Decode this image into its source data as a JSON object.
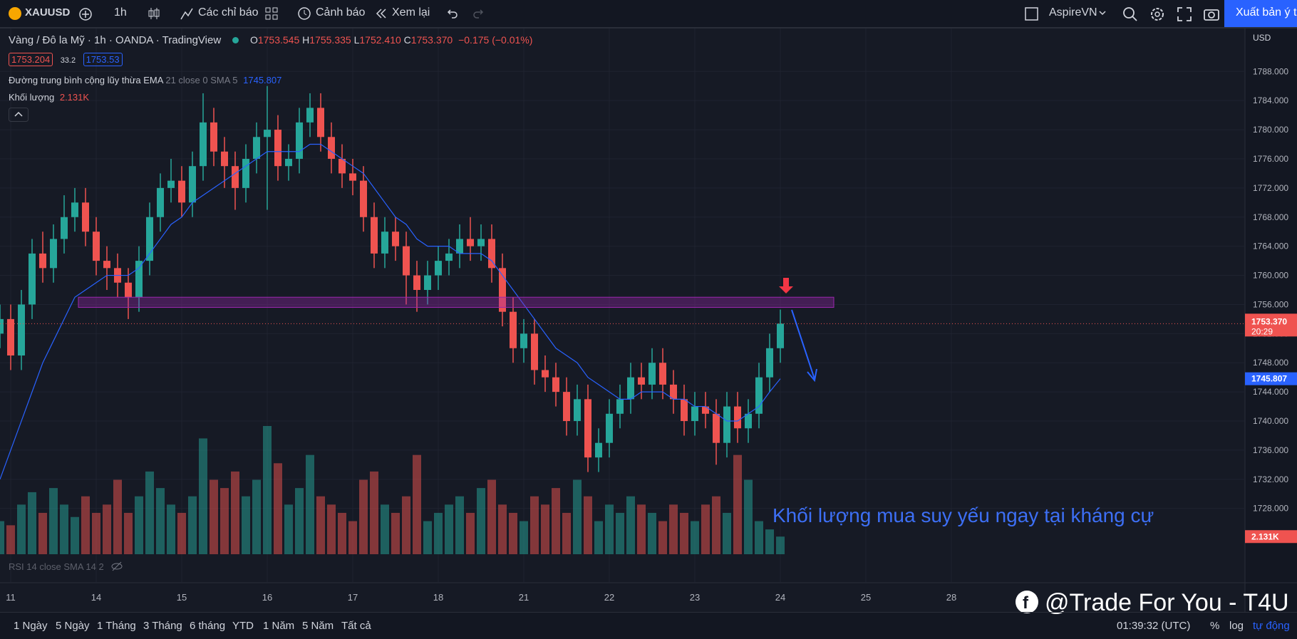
{
  "toolbar": {
    "symbol": "XAUUSD",
    "interval": "1h",
    "indicators": "Các chỉ báo",
    "alerts": "Cảnh báo",
    "replay": "Xem lại",
    "user": "AspireVN",
    "publish": "Xuất bản ý tư"
  },
  "legend": {
    "title": "Vàng / Đô la Mỹ · 1h · OANDA · TradingView",
    "o_label": "O",
    "o": "1753.545",
    "h_label": "H",
    "h": "1755.335",
    "l_label": "L",
    "l": "1752.410",
    "c_label": "C",
    "c": "1753.370",
    "change": "−0.175 (−0.01%)",
    "sell": "1753.204",
    "spread": "33.2",
    "buy": "1753.53",
    "ema_name": "Đường trung bình cộng lũy thừa EMA",
    "ema_params": "21 close 0 SMA 5",
    "ema_value": "1745.807",
    "vol_name": "Khối lượng",
    "vol_value": "2.131K",
    "rsi": "RSI 14 close SMA 14 2"
  },
  "currency": "USD",
  "countdown": "20:29",
  "chart_data": {
    "type": "candlestick",
    "x": [
      -3,
      0,
      3,
      6,
      9,
      12,
      15,
      18,
      21,
      24,
      27,
      30,
      33,
      36,
      39,
      42,
      45,
      48,
      51,
      54,
      57,
      60,
      63,
      66,
      69,
      72,
      75,
      78,
      81,
      84,
      87,
      90,
      93,
      96,
      99,
      102,
      105,
      108,
      111,
      114,
      117,
      120,
      123,
      126,
      129,
      132,
      135,
      138,
      141,
      144,
      147,
      150,
      153,
      156,
      159,
      162,
      165,
      168,
      171,
      174,
      177,
      180,
      183,
      186,
      189,
      192,
      195,
      198,
      201,
      204,
      207,
      210,
      213,
      216
    ],
    "open": [
      1752,
      1754,
      1749,
      1756,
      1763,
      1761,
      1765,
      1768,
      1770,
      1766,
      1762,
      1761,
      1759,
      1757,
      1762,
      1768,
      1772,
      1773,
      1770,
      1775,
      1781,
      1777,
      1775,
      1772,
      1776,
      1779,
      1780,
      1775,
      1776,
      1781,
      1783,
      1779,
      1776,
      1774,
      1773,
      1768,
      1763,
      1766,
      1764,
      1760,
      1758,
      1760,
      1762,
      1763,
      1765,
      1764,
      1765,
      1761,
      1755,
      1750,
      1752,
      1747,
      1746,
      1744,
      1740,
      1743,
      1735,
      1737,
      1741,
      1743,
      1746,
      1745,
      1748,
      1745,
      1743,
      1740,
      1742,
      1741,
      1737,
      1742,
      1739,
      1741,
      1746,
      1750
    ],
    "high": [
      1756,
      1756,
      1758,
      1765,
      1766,
      1767,
      1771,
      1772,
      1772,
      1768,
      1764,
      1763,
      1761,
      1764,
      1770,
      1774,
      1776,
      1775,
      1777,
      1785,
      1783,
      1779,
      1777,
      1778,
      1781,
      1786,
      1782,
      1778,
      1783,
      1785,
      1785,
      1781,
      1778,
      1776,
      1775,
      1770,
      1768,
      1768,
      1766,
      1762,
      1762,
      1764,
      1765,
      1767,
      1768,
      1767,
      1767,
      1763,
      1757,
      1754,
      1754,
      1749,
      1748,
      1746,
      1745,
      1745,
      1739,
      1743,
      1745,
      1748,
      1748,
      1750,
      1750,
      1747,
      1745,
      1744,
      1744,
      1743,
      1744,
      1744,
      1743,
      1748,
      1752,
      1755.3
    ],
    "low": [
      1750,
      1747,
      1747,
      1754,
      1759,
      1759,
      1763,
      1766,
      1764,
      1760,
      1758,
      1757,
      1754,
      1755,
      1760,
      1766,
      1770,
      1768,
      1768,
      1773,
      1775,
      1772,
      1769,
      1770,
      1774,
      1769,
      1773,
      1773,
      1774,
      1779,
      1777,
      1774,
      1772,
      1771,
      1766,
      1761,
      1761,
      1762,
      1756,
      1755,
      1756,
      1758,
      1760,
      1761,
      1762,
      1762,
      1759,
      1753,
      1748,
      1748,
      1745,
      1744,
      1742,
      1738,
      1738,
      1733,
      1733,
      1735,
      1739,
      1741,
      1743,
      1743,
      1743,
      1741,
      1738,
      1738,
      1739,
      1734,
      1735,
      1737,
      1737,
      1739,
      1744,
      1748
    ],
    "close": [
      1754,
      1749,
      1756,
      1763,
      1761,
      1765,
      1768,
      1770,
      1766,
      1762,
      1761,
      1759,
      1757,
      1762,
      1768,
      1772,
      1773,
      1770,
      1775,
      1781,
      1777,
      1775,
      1772,
      1776,
      1779,
      1780,
      1775,
      1776,
      1781,
      1783,
      1779,
      1776,
      1774,
      1773,
      1768,
      1763,
      1766,
      1764,
      1760,
      1758,
      1760,
      1762,
      1763,
      1765,
      1764,
      1765,
      1761,
      1755,
      1750,
      1752,
      1747,
      1746,
      1744,
      1740,
      1743,
      1735,
      1737,
      1741,
      1743,
      1746,
      1745,
      1748,
      1745,
      1743,
      1740,
      1742,
      1741,
      1737,
      1742,
      1739,
      1741,
      1746,
      1750,
      1753.37
    ],
    "volume": [
      4,
      3.5,
      6,
      7.5,
      5,
      8,
      6,
      4.5,
      7,
      5,
      6,
      9,
      5,
      7,
      10,
      8,
      6,
      5,
      7,
      14,
      9,
      8,
      10,
      7,
      9,
      15.5,
      11,
      6,
      8,
      12,
      7,
      6,
      5,
      4,
      9,
      10,
      6,
      5,
      7,
      12,
      4,
      5,
      6,
      7,
      5,
      8,
      9,
      6,
      5,
      4,
      7,
      6,
      8,
      5,
      9,
      7,
      4,
      6,
      5,
      7,
      6,
      5,
      4,
      6,
      5,
      4,
      6,
      7,
      5,
      12,
      9,
      4,
      3,
      2.131
    ],
    "ema": [
      1732,
      1736,
      1740,
      1744,
      1748,
      1751,
      1754,
      1757,
      1758,
      1759,
      1760,
      1760,
      1760,
      1761,
      1763,
      1765,
      1767,
      1768,
      1770,
      1771,
      1772,
      1773,
      1774,
      1775,
      1776,
      1777,
      1777,
      1777,
      1777,
      1778,
      1778,
      1777,
      1776,
      1775,
      1774,
      1772,
      1770,
      1768,
      1767,
      1765,
      1764,
      1764,
      1764,
      1763,
      1763,
      1763,
      1762,
      1760,
      1758,
      1756,
      1754,
      1752,
      1750,
      1749,
      1748,
      1746,
      1745,
      1744,
      1743,
      1743,
      1744,
      1744,
      1744,
      1743,
      1743,
      1742,
      1742,
      1741,
      1740,
      1740,
      1741,
      1742,
      1744,
      1745.807
    ],
    "xlim": [
      -3,
      346.4
    ],
    "ylim": [
      1717.8,
      1793.7
    ],
    "yticks": [
      {
        "value": 1728,
        "label": "1728.000"
      },
      {
        "value": 1732,
        "label": "1732.000"
      },
      {
        "value": 1736,
        "label": "1736.000"
      },
      {
        "value": 1740,
        "label": "1740.000"
      },
      {
        "value": 1744,
        "label": "1744.000"
      },
      {
        "value": 1748,
        "label": "1748.000"
      },
      {
        "value": 1752,
        "label": "1752.000"
      },
      {
        "value": 1756,
        "label": "1756.000"
      },
      {
        "value": 1760,
        "label": "1760.000"
      },
      {
        "value": 1764,
        "label": "1764.000"
      },
      {
        "value": 1768,
        "label": "1768.000"
      },
      {
        "value": 1772,
        "label": "1772.000"
      },
      {
        "value": 1776,
        "label": "1776.000"
      },
      {
        "value": 1780,
        "label": "1780.000"
      },
      {
        "value": 1784,
        "label": "1784.000"
      },
      {
        "value": 1788,
        "label": "1788.000"
      }
    ],
    "xticks": [
      {
        "value": 0,
        "label": "11"
      },
      {
        "value": 24,
        "label": "14"
      },
      {
        "value": 48,
        "label": "15"
      },
      {
        "value": 72,
        "label": "16"
      },
      {
        "value": 96,
        "label": "17"
      },
      {
        "value": 120,
        "label": "18"
      },
      {
        "value": 144,
        "label": "21"
      },
      {
        "value": 168,
        "label": "22"
      },
      {
        "value": 192,
        "label": "23"
      },
      {
        "value": 216,
        "label": "24"
      },
      {
        "value": 240,
        "label": "25"
      },
      {
        "value": 264,
        "label": "28"
      }
    ],
    "grid": true,
    "up_color": "#26a69a",
    "down_color": "#ef5350",
    "ema_color": "#2962ff",
    "zone_color": "#9c27b0",
    "zone": {
      "x": [
        19,
        231
      ],
      "y": [
        1755.6,
        1757.0
      ]
    },
    "annotation": "Khối lượng mua suy yếu ngay tại kháng cự",
    "watermark": "@Trade For You - T4U"
  },
  "range_buttons": [
    "1 Ngày",
    "5 Ngày",
    "1 Tháng",
    "3 Tháng",
    "6 tháng",
    "YTD",
    "1 Năm",
    "5 Năm",
    "Tất cả"
  ],
  "clock": "01:39:32 (UTC)",
  "scale_buttons": [
    "%",
    "log",
    "tự động"
  ]
}
